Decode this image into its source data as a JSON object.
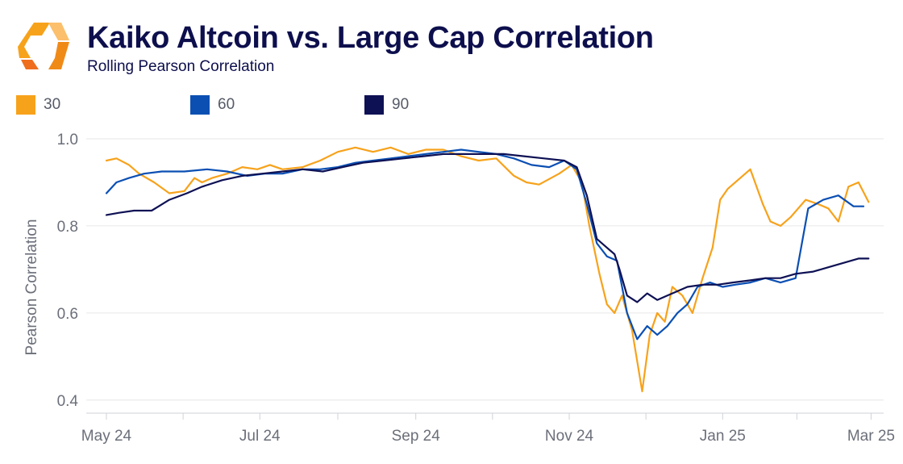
{
  "header": {
    "title": "Kaiko Altcoin vs. Large Cap Correlation",
    "subtitle": "Rolling Pearson Correlation"
  },
  "chart_data": {
    "type": "line",
    "title": "Kaiko Altcoin vs. Large Cap Correlation",
    "subtitle": "Rolling Pearson Correlation",
    "xlabel": "",
    "ylabel": "Pearson Correlation",
    "ylim": [
      0.37,
      1.0
    ],
    "yticks": [
      0.4,
      0.6,
      0.8,
      1.0
    ],
    "ytick_labels": [
      "0.4",
      "0.6",
      "0.8",
      "1.0"
    ],
    "x_axis_start": "2024-04-23",
    "x_axis_end": "2025-03-06",
    "xticks": [
      "2024-05-01",
      "2024-07-01",
      "2024-09-01",
      "2024-11-01",
      "2025-01-01",
      "2025-03-01"
    ],
    "xtick_labels": [
      "May 24",
      "Jul 24",
      "Sep 24",
      "Nov 24",
      "Jan 25",
      "Mar 25"
    ],
    "grid": true,
    "legend_position": "top-left",
    "series": [
      {
        "name": "30",
        "color": "#f7a21b",
        "x": [
          "2024-05-01",
          "2024-05-05",
          "2024-05-10",
          "2024-05-14",
          "2024-05-20",
          "2024-05-26",
          "2024-06-01",
          "2024-06-05",
          "2024-06-08",
          "2024-06-12",
          "2024-06-18",
          "2024-06-24",
          "2024-06-30",
          "2024-07-05",
          "2024-07-10",
          "2024-07-18",
          "2024-07-25",
          "2024-08-01",
          "2024-08-08",
          "2024-08-15",
          "2024-08-22",
          "2024-08-29",
          "2024-09-05",
          "2024-09-12",
          "2024-09-19",
          "2024-09-26",
          "2024-10-03",
          "2024-10-10",
          "2024-10-15",
          "2024-10-20",
          "2024-10-28",
          "2024-11-02",
          "2024-11-06",
          "2024-11-09",
          "2024-11-13",
          "2024-11-16",
          "2024-11-19",
          "2024-11-22",
          "2024-11-26",
          "2024-11-30",
          "2024-12-03",
          "2024-12-06",
          "2024-12-09",
          "2024-12-12",
          "2024-12-16",
          "2024-12-20",
          "2024-12-24",
          "2024-12-28",
          "2024-12-31",
          "2025-01-03",
          "2025-01-07",
          "2025-01-12",
          "2025-01-17",
          "2025-01-20",
          "2025-01-24",
          "2025-01-28",
          "2025-02-03",
          "2025-02-08",
          "2025-02-12",
          "2025-02-16",
          "2025-02-20",
          "2025-02-24",
          "2025-02-28"
        ],
        "y": [
          0.95,
          0.955,
          0.94,
          0.92,
          0.9,
          0.875,
          0.88,
          0.91,
          0.9,
          0.91,
          0.92,
          0.935,
          0.93,
          0.94,
          0.93,
          0.935,
          0.95,
          0.97,
          0.98,
          0.97,
          0.98,
          0.965,
          0.975,
          0.975,
          0.96,
          0.95,
          0.955,
          0.915,
          0.9,
          0.895,
          0.92,
          0.94,
          0.9,
          0.8,
          0.69,
          0.62,
          0.6,
          0.64,
          0.56,
          0.42,
          0.55,
          0.6,
          0.58,
          0.66,
          0.64,
          0.6,
          0.68,
          0.75,
          0.86,
          0.885,
          0.905,
          0.93,
          0.85,
          0.81,
          0.8,
          0.82,
          0.86,
          0.85,
          0.84,
          0.81,
          0.89,
          0.9,
          0.855
        ]
      },
      {
        "name": "60",
        "color": "#0b4fb3",
        "x": [
          "2024-05-01",
          "2024-05-05",
          "2024-05-10",
          "2024-05-16",
          "2024-05-23",
          "2024-06-01",
          "2024-06-10",
          "2024-06-18",
          "2024-06-26",
          "2024-07-03",
          "2024-07-10",
          "2024-07-18",
          "2024-07-25",
          "2024-08-01",
          "2024-08-08",
          "2024-08-15",
          "2024-08-22",
          "2024-08-29",
          "2024-09-05",
          "2024-09-12",
          "2024-09-19",
          "2024-09-26",
          "2024-10-03",
          "2024-10-10",
          "2024-10-17",
          "2024-10-24",
          "2024-10-30",
          "2024-11-04",
          "2024-11-08",
          "2024-11-12",
          "2024-11-16",
          "2024-11-20",
          "2024-11-24",
          "2024-11-28",
          "2024-12-02",
          "2024-12-06",
          "2024-12-10",
          "2024-12-14",
          "2024-12-18",
          "2024-12-22",
          "2024-12-27",
          "2025-01-01",
          "2025-01-06",
          "2025-01-12",
          "2025-01-18",
          "2025-01-24",
          "2025-01-30",
          "2025-02-04",
          "2025-02-10",
          "2025-02-16",
          "2025-02-22",
          "2025-02-26"
        ],
        "y": [
          0.875,
          0.9,
          0.91,
          0.92,
          0.925,
          0.925,
          0.93,
          0.925,
          0.915,
          0.92,
          0.92,
          0.93,
          0.93,
          0.935,
          0.945,
          0.95,
          0.955,
          0.96,
          0.965,
          0.97,
          0.975,
          0.97,
          0.965,
          0.955,
          0.94,
          0.935,
          0.95,
          0.93,
          0.85,
          0.76,
          0.73,
          0.72,
          0.6,
          0.54,
          0.57,
          0.55,
          0.57,
          0.6,
          0.62,
          0.66,
          0.67,
          0.66,
          0.665,
          0.67,
          0.68,
          0.67,
          0.68,
          0.84,
          0.86,
          0.87,
          0.845,
          0.845
        ]
      },
      {
        "name": "90",
        "color": "#0e1154",
        "x": [
          "2024-05-01",
          "2024-05-06",
          "2024-05-12",
          "2024-05-19",
          "2024-05-26",
          "2024-06-02",
          "2024-06-08",
          "2024-06-16",
          "2024-06-24",
          "2024-07-02",
          "2024-07-10",
          "2024-07-18",
          "2024-07-26",
          "2024-08-03",
          "2024-08-11",
          "2024-08-19",
          "2024-08-27",
          "2024-09-04",
          "2024-09-12",
          "2024-09-20",
          "2024-09-28",
          "2024-10-06",
          "2024-10-14",
          "2024-10-22",
          "2024-10-30",
          "2024-11-04",
          "2024-11-08",
          "2024-11-12",
          "2024-11-16",
          "2024-11-19",
          "2024-11-21",
          "2024-11-24",
          "2024-11-28",
          "2024-12-02",
          "2024-12-06",
          "2024-12-10",
          "2024-12-14",
          "2024-12-18",
          "2024-12-24",
          "2024-12-30",
          "2025-01-05",
          "2025-01-12",
          "2025-01-18",
          "2025-01-24",
          "2025-01-30",
          "2025-02-06",
          "2025-02-12",
          "2025-02-18",
          "2025-02-24",
          "2025-02-28"
        ],
        "y": [
          0.825,
          0.83,
          0.835,
          0.835,
          0.86,
          0.875,
          0.89,
          0.905,
          0.915,
          0.92,
          0.925,
          0.93,
          0.925,
          0.935,
          0.945,
          0.95,
          0.955,
          0.96,
          0.965,
          0.965,
          0.965,
          0.965,
          0.96,
          0.955,
          0.95,
          0.935,
          0.87,
          0.77,
          0.75,
          0.735,
          0.7,
          0.64,
          0.625,
          0.645,
          0.63,
          0.64,
          0.65,
          0.66,
          0.665,
          0.665,
          0.67,
          0.675,
          0.68,
          0.68,
          0.69,
          0.695,
          0.705,
          0.715,
          0.725,
          0.725
        ]
      }
    ]
  }
}
